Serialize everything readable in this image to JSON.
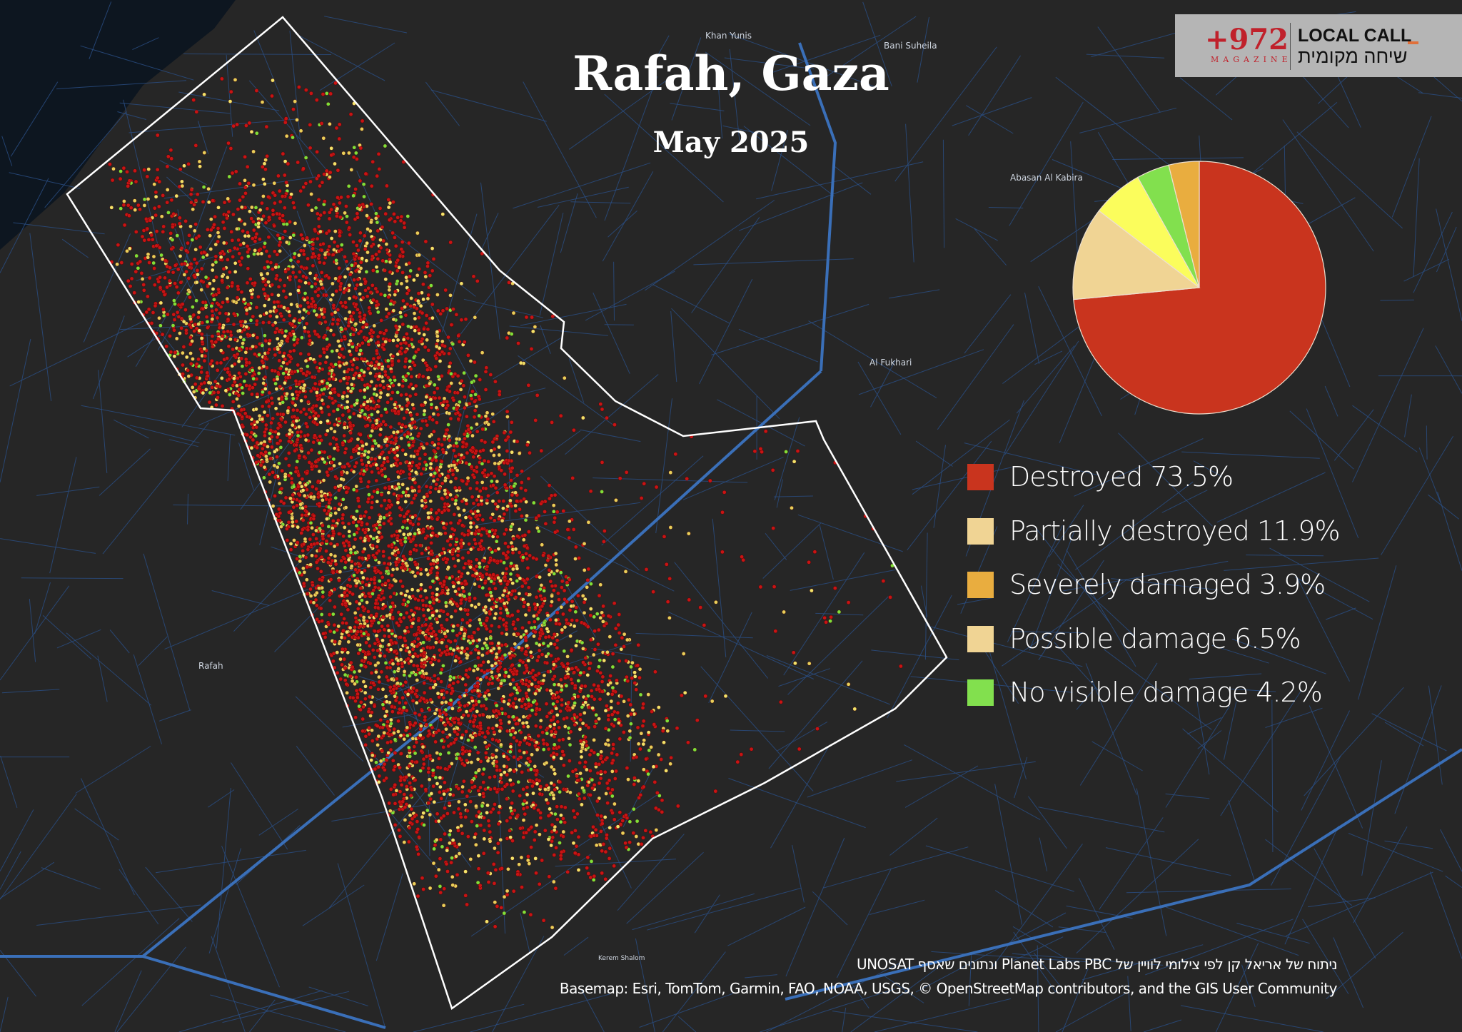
{
  "title": "Rafah, Gaza",
  "subtitle": "May 2025",
  "logo": {
    "number": "+972",
    "magazine": "MAGAZINE",
    "local_call": "LOCAL CALL",
    "hebrew": "שיחה מקומית"
  },
  "legend": [
    {
      "label": "Destroyed 73.5%",
      "color": "#c9341e"
    },
    {
      "label": "Partially destroyed 11.9%",
      "color": "#f0d494"
    },
    {
      "label": "Severely damaged 3.9%",
      "color": "#e9ad3f"
    },
    {
      "label": "Possible damage 6.5%",
      "color": "#f0d494"
    },
    {
      "label": "No visible damage 4.2%",
      "color": "#82e04e"
    }
  ],
  "chart_data": {
    "type": "pie",
    "start": "12 o'clock, clockwise",
    "slices": [
      {
        "category": "Destroyed",
        "value": 73.5,
        "color": "#c9341e"
      },
      {
        "category": "Partially destroyed",
        "value": 11.9,
        "color": "#f0d494"
      },
      {
        "category": "Possible damage",
        "value": 6.5,
        "color": "#fbfd5c"
      },
      {
        "category": "No visible damage",
        "value": 4.2,
        "color": "#82e04e"
      },
      {
        "category": "Severely damaged",
        "value": 3.9,
        "color": "#e9ad3f"
      }
    ]
  },
  "places": [
    "Khan Yunis",
    "Bani Suheila",
    "Abasan Al Kabira",
    "Al Fukhari",
    "Rafah",
    "Kerem Shalom"
  ],
  "credits": {
    "analysis": "ניתוח של אריאל קן לפי צילומי לוויין של Planet Labs PBC ונתונים שאסף UNOSAT",
    "basemap": "Basemap: Esri, TomTom, Garmin, FAO, NOAA, USGS, © OpenStreetMap contributors, and the GIS User Community"
  },
  "colors": {
    "background": "#262626",
    "roads": "#2f5e9e",
    "sea": "#0d1620",
    "boundary": "#ffffff"
  }
}
